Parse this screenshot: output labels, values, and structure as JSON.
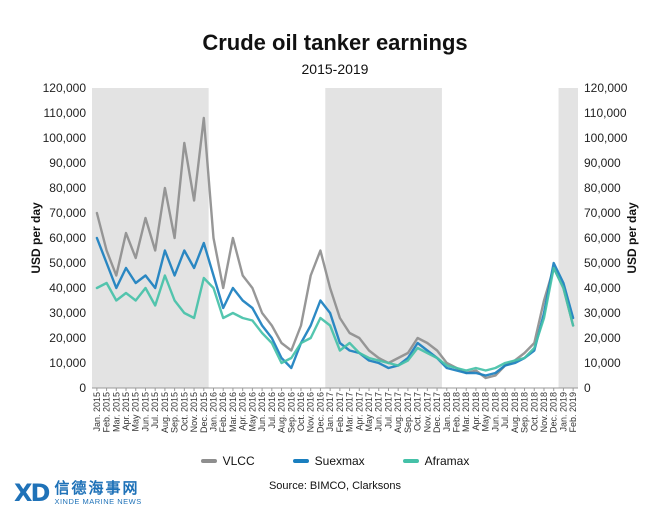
{
  "chart_data": {
    "type": "line",
    "title": "Crude oil tanker earnings",
    "subtitle": "2015-2019",
    "ylabel": "USD per day",
    "ylabel_right": "USD per day",
    "ylim": [
      0,
      120000
    ],
    "yticks": [
      "0",
      "10,000",
      "20,000",
      "30,000",
      "40,000",
      "50,000",
      "60,000",
      "70,000",
      "80,000",
      "90,000",
      "100,000",
      "110,000",
      "120,000"
    ],
    "x": [
      "Jan. 2015",
      "Feb. 2015",
      "Mar. 2015",
      "Apr. 2015",
      "May 2015",
      "Jun. 2015",
      "Jul. 2015",
      "Aug. 2015",
      "Sep. 2015",
      "Oct. 2015",
      "Nov. 2015",
      "Dec. 2015",
      "Jan. 2016",
      "Feb. 2016",
      "Mar. 2016",
      "Apr. 2016",
      "May 2016",
      "Jun. 2016",
      "Jul. 2016",
      "Aug. 2016",
      "Sep. 2016",
      "Oct. 2016",
      "Nov. 2016",
      "Dec. 2016",
      "Jan. 2017",
      "Feb. 2017",
      "Mar. 2017",
      "Apr. 2017",
      "May 2017",
      "Jun. 2017",
      "Jul. 2017",
      "Aug. 2017",
      "Sep. 2017",
      "Oct. 2017",
      "Nov. 2017",
      "Dec. 2017",
      "Jan. 2018",
      "Feb. 2018",
      "Mar. 2018",
      "Apr. 2018",
      "May 2018",
      "Jun. 2018",
      "Jul. 2018",
      "Aug. 2018",
      "Sep. 2018",
      "Oct. 2018",
      "Nov. 2018",
      "Dec. 2018",
      "Jan. 2019",
      "Feb. 2019"
    ],
    "shaded_periods": [
      [
        "Jan. 2015",
        "Dec. 2015"
      ],
      [
        "Jan. 2017",
        "Dec. 2017"
      ],
      [
        "Jan. 2019",
        "Feb. 2019"
      ]
    ],
    "grid": false,
    "legend_position": "bottom",
    "series": [
      {
        "name": "VLCC",
        "color": "#8e8e8e",
        "values": [
          70000,
          55000,
          45000,
          62000,
          52000,
          68000,
          55000,
          80000,
          60000,
          98000,
          75000,
          108000,
          60000,
          40000,
          60000,
          45000,
          40000,
          30000,
          25000,
          18000,
          15000,
          25000,
          45000,
          55000,
          40000,
          28000,
          22000,
          20000,
          15000,
          12000,
          10000,
          12000,
          14000,
          20000,
          18000,
          15000,
          10000,
          8000,
          6000,
          7000,
          4000,
          5000,
          9000,
          11000,
          14000,
          18000,
          35000,
          48000,
          40000,
          25000
        ]
      },
      {
        "name": "Suexmax",
        "color": "#1a7fbf",
        "values": [
          60000,
          50000,
          40000,
          48000,
          42000,
          45000,
          40000,
          55000,
          45000,
          55000,
          48000,
          58000,
          45000,
          32000,
          40000,
          35000,
          32000,
          25000,
          20000,
          12000,
          8000,
          18000,
          25000,
          35000,
          30000,
          18000,
          15000,
          14000,
          11000,
          10000,
          8000,
          9000,
          12000,
          18000,
          15000,
          12000,
          8000,
          7000,
          6000,
          6000,
          5000,
          6000,
          9000,
          10000,
          12000,
          15000,
          30000,
          50000,
          42000,
          28000
        ]
      },
      {
        "name": "Aframax",
        "color": "#45c1a8",
        "values": [
          40000,
          42000,
          35000,
          38000,
          35000,
          40000,
          33000,
          45000,
          35000,
          30000,
          28000,
          44000,
          40000,
          28000,
          30000,
          28000,
          27000,
          22000,
          18000,
          10000,
          12000,
          18000,
          20000,
          28000,
          25000,
          15000,
          18000,
          14000,
          12000,
          11000,
          10000,
          9000,
          11000,
          16000,
          14000,
          12000,
          9000,
          8000,
          7000,
          8000,
          7000,
          8000,
          10000,
          11000,
          12000,
          16000,
          28000,
          48000,
          40000,
          25000
        ]
      }
    ]
  }
}
